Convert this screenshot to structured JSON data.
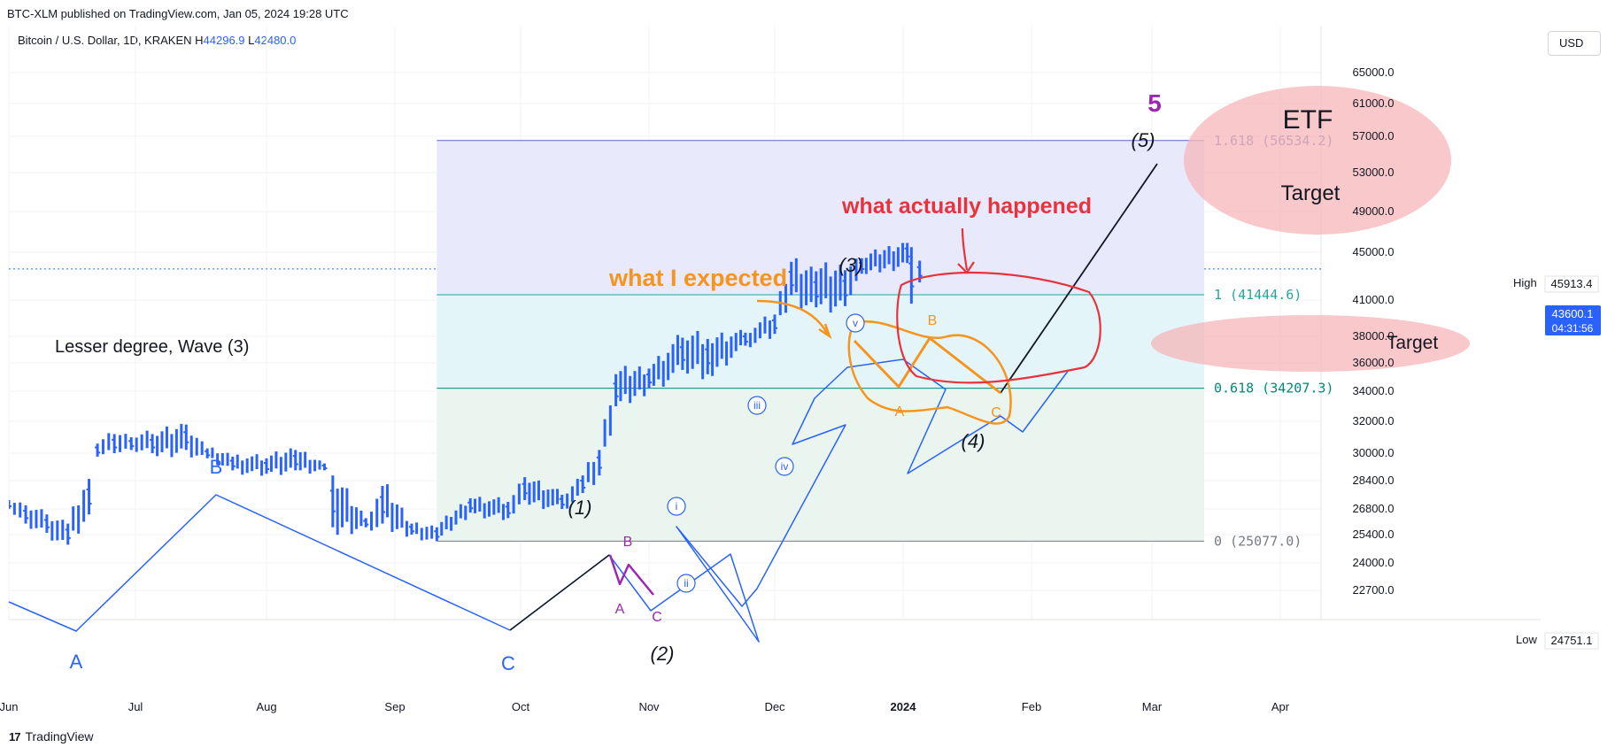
{
  "caption": "BTC-XLM published on TradingView.com, Jan 05, 2024 19:28 UTC",
  "symbol": {
    "name": "Bitcoin / U.S. Dollar, 1D, KRAKEN",
    "high_label": "H",
    "high_value": "44296.9",
    "low_label": "L",
    "low_value": "42480.0"
  },
  "currency": "USD",
  "footer": {
    "logo": "17",
    "brand": "TradingView"
  },
  "colors": {
    "bar": "#2962ff",
    "fib_top_fill": "#e8eafc",
    "fib_mid_fill": "#e3f5f8",
    "fib_low_fill": "#e9f5ee",
    "orange": "#f7941d",
    "red": "#e8323c",
    "purple": "#9c27b0",
    "ellipse": "#f5b5ba"
  },
  "chart_data": {
    "type": "bar",
    "symbol": "Bitcoin / U.S. Dollar",
    "interval": "1D",
    "exchange": "KRAKEN",
    "y_ticks": [
      65000,
      61000,
      57000,
      53000,
      49000,
      45000,
      41000,
      38000,
      36000,
      34000,
      32000,
      30000,
      28400,
      26800,
      25400,
      24000,
      22700
    ],
    "x_ticks": [
      "Jun",
      "Jul",
      "Aug",
      "Sep",
      "Oct",
      "Nov",
      "Dec",
      "2024",
      "Feb",
      "Mar",
      "Apr"
    ],
    "ylim": [
      22000,
      70000
    ],
    "series": [
      {
        "name": "Bitcoin / U.S. Dollar",
        "ohlc_approx": [
          [
            "2023-06-01",
            26800,
            27300
          ],
          [
            "2023-06-05",
            26000,
            27000
          ],
          [
            "2023-06-10",
            25500,
            26500
          ],
          [
            "2023-06-15",
            24900,
            26000
          ],
          [
            "2023-06-20",
            26500,
            28500
          ],
          [
            "2023-06-22",
            29800,
            30600
          ],
          [
            "2023-06-26",
            30000,
            31200
          ],
          [
            "2023-06-30",
            30200,
            31000
          ],
          [
            "2023-07-05",
            30000,
            31200
          ],
          [
            "2023-07-13",
            30200,
            31800
          ],
          [
            "2023-07-18",
            29700,
            30300
          ],
          [
            "2023-07-24",
            29000,
            29800
          ],
          [
            "2023-08-01",
            28800,
            29700
          ],
          [
            "2023-08-08",
            29000,
            30200
          ],
          [
            "2023-08-15",
            29000,
            29400
          ],
          [
            "2023-08-17",
            25800,
            28700
          ],
          [
            "2023-08-25",
            25800,
            26300
          ],
          [
            "2023-08-29",
            26000,
            28100
          ],
          [
            "2023-09-05",
            25400,
            26000
          ],
          [
            "2023-09-11",
            25077,
            25800
          ],
          [
            "2023-09-19",
            26600,
            27400
          ],
          [
            "2023-09-28",
            26300,
            27200
          ],
          [
            "2023-10-02",
            27300,
            28600
          ],
          [
            "2023-10-11",
            26800,
            27600
          ],
          [
            "2023-10-16",
            27700,
            28700
          ],
          [
            "2023-10-20",
            28700,
            30200
          ],
          [
            "2023-10-24",
            33000,
            35200
          ],
          [
            "2023-11-01",
            34200,
            35600
          ],
          [
            "2023-11-09",
            35500,
            37900
          ],
          [
            "2023-11-15",
            35200,
            37800
          ],
          [
            "2023-11-24",
            37300,
            38300
          ],
          [
            "2023-12-01",
            38200,
            39800
          ],
          [
            "2023-12-05",
            41400,
            44200
          ],
          [
            "2023-12-11",
            40400,
            43400
          ],
          [
            "2023-12-18",
            40500,
            43500
          ],
          [
            "2023-12-22",
            43200,
            44500
          ],
          [
            "2024-01-02",
            44100,
            45913.4
          ],
          [
            "2024-01-03",
            40700,
            45500
          ],
          [
            "2024-01-05",
            42480,
            44296.9
          ]
        ]
      }
    ],
    "price_labels": {
      "high_label": "High",
      "high_value": "45913.4",
      "last_value": "43600.1",
      "countdown": "04:31:56",
      "low_label": "Low",
      "low_value": "24751.1"
    },
    "fib_levels": [
      {
        "label": "1.618 (56534.2)",
        "value": 56534.2,
        "color": "#5c6bc0"
      },
      {
        "label": "1 (41444.6)",
        "value": 41444.6,
        "color": "#26a69a"
      },
      {
        "label": "0.618 (34207.3)",
        "value": 34207.3,
        "color": "#00897b"
      },
      {
        "label": "0 (25077.0)",
        "value": 25077.0,
        "color": "#787b86"
      }
    ],
    "annotations": {
      "lesser_degree": "Lesser degree, Wave (3)",
      "what_expected": "what I expected",
      "what_happened": "what actually happened",
      "etf": "ETF",
      "target": "Target",
      "wave_labels": {
        "A_left": "A",
        "B_left": "B",
        "C_left": "C",
        "w1": "(1)",
        "w2": "(2)",
        "w3": "(3)",
        "w4": "(4)",
        "w5": "(5)",
        "w5_major": "5",
        "sub_a": "A",
        "sub_b": "B",
        "sub_c": "C",
        "r_i": "i",
        "r_ii": "ii",
        "r_iii": "iii",
        "r_iv": "iv",
        "r_v": "v",
        "orange_a": "A",
        "orange_b": "B",
        "orange_c": "C"
      }
    }
  }
}
